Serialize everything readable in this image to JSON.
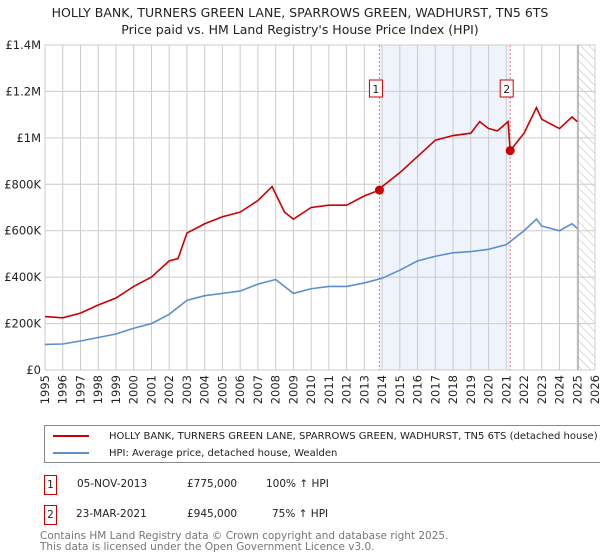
{
  "chart_data": {
    "type": "line",
    "title": "HOLLY BANK, TURNERS GREEN LANE, SPARROWS GREEN, WADHURST, TN5 6TS",
    "subtitle": "Price paid vs. HM Land Registry's House Price Index (HPI)",
    "xlim": [
      1995,
      2026
    ],
    "ylim": [
      0,
      1400000
    ],
    "x_ticks": [
      "1995",
      "1996",
      "1997",
      "1998",
      "1999",
      "2000",
      "2001",
      "2002",
      "2003",
      "2004",
      "2005",
      "2006",
      "2007",
      "2008",
      "2009",
      "2010",
      "2011",
      "2012",
      "2013",
      "2014",
      "2015",
      "2016",
      "2017",
      "2018",
      "2019",
      "2020",
      "2021",
      "2022",
      "2023",
      "2024",
      "2025",
      "2026"
    ],
    "y_ticks": [
      {
        "v": 0,
        "label": "£0"
      },
      {
        "v": 200000,
        "label": "£200K"
      },
      {
        "v": 400000,
        "label": "£400K"
      },
      {
        "v": 600000,
        "label": "£600K"
      },
      {
        "v": 800000,
        "label": "£800K"
      },
      {
        "v": 1000000,
        "label": "£1M"
      },
      {
        "v": 1200000,
        "label": "£1.2M"
      },
      {
        "v": 1400000,
        "label": "£1.4M"
      }
    ],
    "grid": true,
    "series": [
      {
        "name": "HOLLY BANK, TURNERS GREEN LANE, SPARROWS GREEN, WADHURST, TN5 6TS (detached house)",
        "color": "#cc0000",
        "x": [
          1995,
          1996,
          1997,
          1998,
          1999,
          2000,
          2001,
          2002,
          2002.5,
          2003,
          2004,
          2005,
          2006,
          2007,
          2007.8,
          2008.5,
          2009,
          2010,
          2011,
          2012,
          2013,
          2013.85,
          2014,
          2015,
          2016,
          2017,
          2018,
          2019,
          2019.5,
          2020,
          2020.5,
          2021.1,
          2021.22,
          2022,
          2022.7,
          2023,
          2024,
          2024.7,
          2025
        ],
        "y": [
          230000,
          225000,
          245000,
          280000,
          310000,
          360000,
          400000,
          470000,
          480000,
          590000,
          630000,
          660000,
          680000,
          730000,
          790000,
          680000,
          650000,
          700000,
          710000,
          710000,
          750000,
          775000,
          790000,
          850000,
          920000,
          990000,
          1010000,
          1020000,
          1070000,
          1040000,
          1030000,
          1070000,
          945000,
          1020000,
          1130000,
          1080000,
          1040000,
          1090000,
          1070000
        ]
      },
      {
        "name": "HPI: Average price, detached house, Wealden",
        "color": "#5b8fd0",
        "x": [
          1995,
          1996,
          1997,
          1998,
          1999,
          2000,
          2001,
          2002,
          2003,
          2004,
          2005,
          2006,
          2007,
          2008,
          2009,
          2010,
          2011,
          2012,
          2013,
          2014,
          2015,
          2016,
          2017,
          2018,
          2019,
          2020,
          2021,
          2022,
          2022.7,
          2023,
          2024,
          2024.7,
          2025
        ],
        "y": [
          110000,
          112000,
          125000,
          140000,
          155000,
          180000,
          200000,
          240000,
          300000,
          320000,
          330000,
          340000,
          370000,
          390000,
          330000,
          350000,
          360000,
          360000,
          375000,
          395000,
          430000,
          470000,
          490000,
          505000,
          510000,
          520000,
          540000,
          600000,
          650000,
          620000,
          600000,
          630000,
          610000
        ]
      }
    ],
    "sales": [
      {
        "label": "1",
        "x": 2013.85,
        "y": 775000,
        "date": "05-NOV-2013",
        "price": "£775,000",
        "hpi": "100% ↑ HPI"
      },
      {
        "label": "2",
        "x": 2021.22,
        "y": 945000,
        "date": "23-MAR-2021",
        "price": "£945,000",
        "hpi": "75% ↑ HPI"
      }
    ],
    "shaded_between": [
      2013.85,
      2021.22
    ],
    "future_hatch_from": 2025.05
  },
  "footer": {
    "line1": "Contains HM Land Registry data © Crown copyright and database right 2025.",
    "line2": "This data is licensed under the Open Government Licence v3.0."
  }
}
